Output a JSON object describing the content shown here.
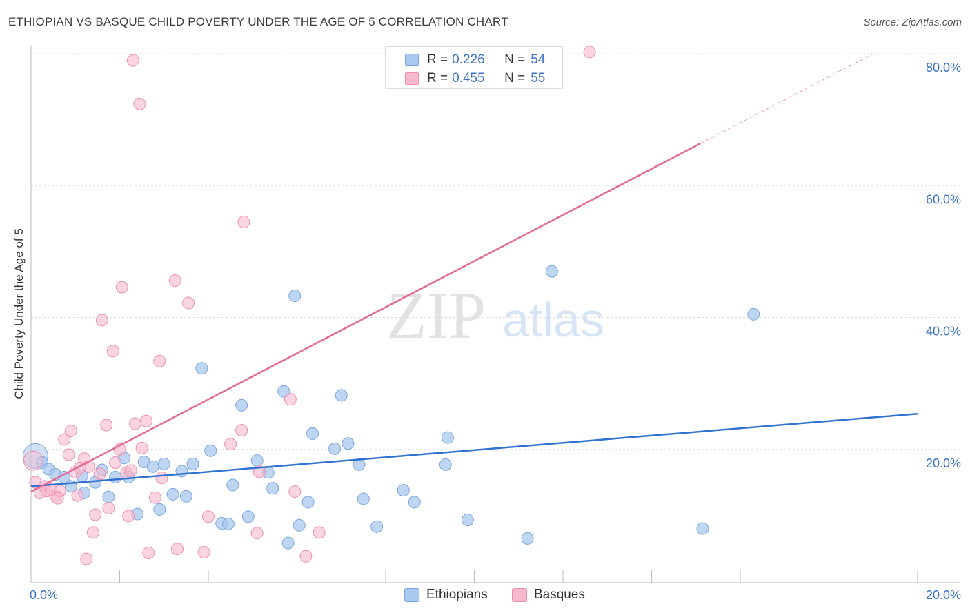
{
  "header": {
    "title": "ETHIOPIAN VS BASQUE CHILD POVERTY UNDER THE AGE OF 5 CORRELATION CHART",
    "source": "Source: ZipAtlas.com"
  },
  "watermark": {
    "zip": "ZIP",
    "atlas": "atlas"
  },
  "legend": {
    "rows": [
      {
        "r_label": "R =",
        "r_value": "0.226",
        "n_label": "N =",
        "n_value": "54"
      },
      {
        "r_label": "R =",
        "r_value": "0.455",
        "n_label": "N =",
        "n_value": "55"
      }
    ]
  },
  "bottom_legend": {
    "ethiopians": "Ethiopians",
    "basques": "Basques"
  },
  "colors": {
    "ethiopians_fill": "#a9c8ef",
    "ethiopians_stroke": "#7aa6de",
    "ethiopians_line": "#2f72d0",
    "basques_fill": "#f6b8cb",
    "basques_stroke": "#ec8fae",
    "basques_line": "#e46a94",
    "tick_text": "#3b73c9",
    "grid": "#dddddd"
  },
  "chart_data": {
    "type": "scatter",
    "title": "ETHIOPIAN VS BASQUE CHILD POVERTY UNDER THE AGE OF 5 CORRELATION CHART",
    "xlabel": "",
    "ylabel": "Child Poverty Under the Age of 5",
    "xlim": [
      0,
      20
    ],
    "ylim": [
      0,
      80
    ],
    "x_ticks": [
      "0.0%",
      "20.0%"
    ],
    "y_ticks": [
      "20.0%",
      "40.0%",
      "60.0%",
      "80.0%"
    ],
    "grid": true,
    "series": [
      {
        "name": "Ethiopians",
        "r": 0.226,
        "n": 54,
        "trend": {
          "x": [
            0,
            20
          ],
          "y": [
            14.6,
            25.6
          ]
        },
        "points": [
          [
            0.1,
            19.2
          ],
          [
            0.25,
            18.2
          ],
          [
            0.4,
            17.2
          ],
          [
            0.55,
            16.4
          ],
          [
            0.75,
            16.0
          ],
          [
            0.9,
            14.6
          ],
          [
            1.15,
            16.2
          ],
          [
            1.2,
            13.6
          ],
          [
            1.45,
            15.2
          ],
          [
            1.6,
            17.1
          ],
          [
            1.75,
            13.0
          ],
          [
            1.9,
            16.0
          ],
          [
            2.1,
            18.9
          ],
          [
            2.2,
            16.0
          ],
          [
            2.4,
            10.4
          ],
          [
            2.55,
            18.3
          ],
          [
            2.75,
            17.6
          ],
          [
            2.9,
            11.1
          ],
          [
            3.0,
            18.0
          ],
          [
            3.2,
            13.4
          ],
          [
            3.4,
            16.9
          ],
          [
            3.5,
            13.1
          ],
          [
            3.65,
            18.0
          ],
          [
            3.85,
            32.5
          ],
          [
            4.05,
            20.0
          ],
          [
            4.3,
            9.0
          ],
          [
            4.45,
            8.9
          ],
          [
            4.55,
            14.8
          ],
          [
            4.75,
            26.9
          ],
          [
            4.9,
            10.0
          ],
          [
            5.1,
            18.5
          ],
          [
            5.35,
            16.7
          ],
          [
            5.45,
            14.3
          ],
          [
            5.7,
            29.0
          ],
          [
            5.8,
            6.0
          ],
          [
            5.95,
            43.5
          ],
          [
            6.05,
            8.7
          ],
          [
            6.25,
            12.2
          ],
          [
            6.35,
            22.6
          ],
          [
            6.85,
            20.3
          ],
          [
            7.0,
            28.4
          ],
          [
            7.15,
            21.1
          ],
          [
            7.4,
            17.9
          ],
          [
            7.5,
            12.7
          ],
          [
            7.8,
            8.5
          ],
          [
            8.4,
            14.0
          ],
          [
            8.65,
            12.2
          ],
          [
            9.35,
            17.9
          ],
          [
            9.4,
            22.0
          ],
          [
            9.85,
            9.5
          ],
          [
            11.2,
            6.7
          ],
          [
            11.75,
            47.2
          ],
          [
            15.15,
            8.2
          ],
          [
            16.3,
            40.7
          ]
        ]
      },
      {
        "name": "Basques",
        "r": 0.455,
        "n": 55,
        "trend": {
          "x": [
            0,
            15.1
          ],
          "y": [
            13.8,
            66.6
          ]
        },
        "trend_dashed": {
          "x": [
            15.1,
            19.0
          ],
          "y": [
            66.6,
            80.2
          ]
        },
        "points": [
          [
            0.05,
            18.5
          ],
          [
            0.1,
            15.2
          ],
          [
            0.2,
            13.6
          ],
          [
            0.3,
            14.6
          ],
          [
            0.35,
            13.9
          ],
          [
            0.45,
            14.1
          ],
          [
            0.55,
            13.2
          ],
          [
            0.65,
            13.9
          ],
          [
            0.75,
            21.7
          ],
          [
            0.85,
            19.4
          ],
          [
            0.9,
            23.0
          ],
          [
            1.0,
            16.7
          ],
          [
            1.1,
            17.4
          ],
          [
            1.2,
            18.8
          ],
          [
            1.25,
            3.6
          ],
          [
            1.3,
            17.6
          ],
          [
            1.4,
            7.6
          ],
          [
            1.45,
            10.3
          ],
          [
            1.55,
            16.5
          ],
          [
            1.6,
            39.8
          ],
          [
            1.7,
            23.9
          ],
          [
            1.75,
            11.3
          ],
          [
            1.85,
            35.1
          ],
          [
            1.9,
            18.2
          ],
          [
            2.0,
            20.2
          ],
          [
            2.05,
            44.8
          ],
          [
            2.15,
            16.6
          ],
          [
            2.2,
            10.1
          ],
          [
            2.3,
            79.2
          ],
          [
            2.35,
            24.1
          ],
          [
            2.45,
            72.6
          ],
          [
            2.5,
            20.4
          ],
          [
            2.6,
            24.5
          ],
          [
            2.65,
            4.5
          ],
          [
            2.8,
            12.9
          ],
          [
            2.9,
            33.6
          ],
          [
            2.95,
            15.9
          ],
          [
            3.25,
            45.8
          ],
          [
            3.3,
            5.1
          ],
          [
            3.55,
            42.4
          ],
          [
            3.9,
            4.6
          ],
          [
            4.0,
            10.0
          ],
          [
            4.5,
            21.0
          ],
          [
            4.75,
            23.1
          ],
          [
            4.8,
            54.7
          ],
          [
            5.1,
            7.5
          ],
          [
            5.15,
            16.8
          ],
          [
            5.85,
            27.8
          ],
          [
            5.95,
            13.8
          ],
          [
            6.2,
            4.0
          ],
          [
            6.5,
            7.6
          ],
          [
            12.6,
            80.5
          ],
          [
            1.05,
            13.2
          ],
          [
            0.6,
            12.8
          ],
          [
            2.25,
            17.0
          ]
        ]
      }
    ]
  }
}
